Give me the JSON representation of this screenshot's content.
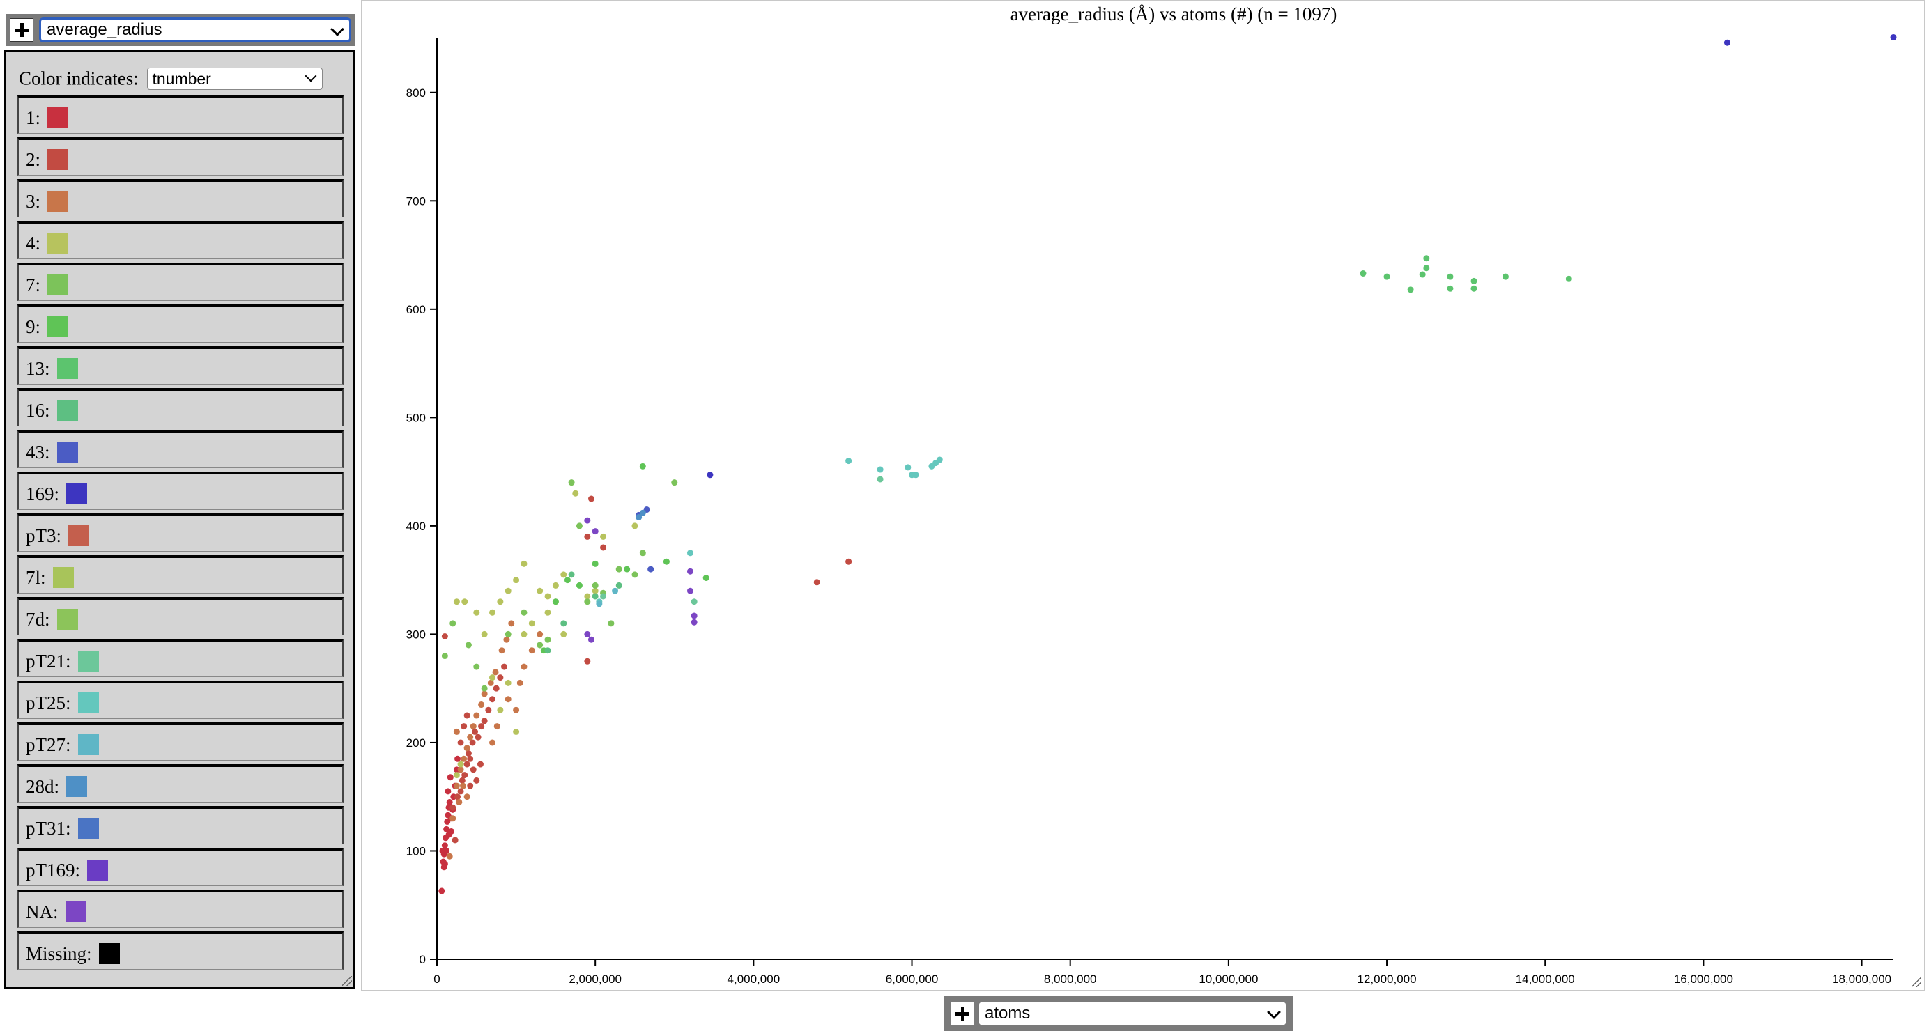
{
  "y_selector": {
    "plus_label": "+",
    "value": "average_radius"
  },
  "x_selector": {
    "plus_label": "+",
    "value": "atoms"
  },
  "legend": {
    "label": "Color indicates:",
    "selected": "tnumber",
    "items": [
      {
        "name": "1:",
        "color": "#c8303f"
      },
      {
        "name": "2:",
        "color": "#c24b42"
      },
      {
        "name": "3:",
        "color": "#c8764a"
      },
      {
        "name": "4:",
        "color": "#b7c35e"
      },
      {
        "name": "7:",
        "color": "#7cc35a"
      },
      {
        "name": "9:",
        "color": "#5fc456"
      },
      {
        "name": "13:",
        "color": "#5cc46e"
      },
      {
        "name": "16:",
        "color": "#5dbf82"
      },
      {
        "name": "43:",
        "color": "#4b5cc4"
      },
      {
        "name": "169:",
        "color": "#3d35c0"
      },
      {
        "name": "pT3:",
        "color": "#c45f4d"
      },
      {
        "name": "7l:",
        "color": "#a8c45a"
      },
      {
        "name": "7d:",
        "color": "#8cc45a"
      },
      {
        "name": "pT21:",
        "color": "#6cc79a"
      },
      {
        "name": "pT25:",
        "color": "#64c7bd"
      },
      {
        "name": "pT27:",
        "color": "#5fb6c6"
      },
      {
        "name": "28d:",
        "color": "#4e90c6"
      },
      {
        "name": "pT31:",
        "color": "#4a74c4"
      },
      {
        "name": "pT169:",
        "color": "#6a3cc4"
      },
      {
        "name": "NA:",
        "color": "#7c46c4"
      },
      {
        "name": "Missing:",
        "color": "#000000"
      }
    ]
  },
  "chart_data": {
    "type": "scatter",
    "title": "average_radius (Å) vs atoms (#) (n = 1097)",
    "xlim": [
      0,
      18400000
    ],
    "ylim": [
      0,
      850
    ],
    "x_ticks": [
      0,
      2000000,
      4000000,
      6000000,
      8000000,
      10000000,
      12000000,
      14000000,
      16000000,
      18000000
    ],
    "x_tick_labels": [
      "0",
      "2,000,000",
      "4,000,000",
      "6,000,000",
      "8,000,000",
      "10,000,000",
      "12,000,000",
      "14,000,000",
      "16,000,000",
      "18,000,000"
    ],
    "y_ticks": [
      0,
      100,
      200,
      300,
      400,
      500,
      600,
      700,
      800
    ],
    "y_tick_labels": [
      "0",
      "100",
      "200",
      "300",
      "400",
      "500",
      "600",
      "700",
      "800"
    ],
    "grid": false,
    "color_by": "tnumber",
    "series": [
      {
        "name": "1:",
        "color": "#c8303f",
        "points": [
          [
            80000,
            90
          ],
          [
            90000,
            97
          ],
          [
            100000,
            105
          ],
          [
            110000,
            112
          ],
          [
            120000,
            120
          ],
          [
            130000,
            127
          ],
          [
            140000,
            133
          ],
          [
            150000,
            140
          ],
          [
            160000,
            145
          ],
          [
            120000,
            100
          ],
          [
            150000,
            115
          ],
          [
            180000,
            130
          ],
          [
            200000,
            138
          ],
          [
            210000,
            150
          ],
          [
            100000,
            88
          ],
          [
            60000,
            63
          ],
          [
            180000,
            118
          ],
          [
            70000,
            100
          ],
          [
            90000,
            85
          ],
          [
            230000,
            160
          ],
          [
            140000,
            155
          ],
          [
            170000,
            168
          ],
          [
            250000,
            175
          ],
          [
            260000,
            185
          ]
        ]
      },
      {
        "name": "2:",
        "color": "#c24b42",
        "points": [
          [
            200000,
            140
          ],
          [
            260000,
            150
          ],
          [
            300000,
            155
          ],
          [
            320000,
            165
          ],
          [
            350000,
            170
          ],
          [
            380000,
            180
          ],
          [
            400000,
            190
          ],
          [
            420000,
            185
          ],
          [
            450000,
            200
          ],
          [
            480000,
            210
          ],
          [
            520000,
            205
          ],
          [
            560000,
            215
          ],
          [
            600000,
            220
          ],
          [
            650000,
            230
          ],
          [
            700000,
            240
          ],
          [
            750000,
            250
          ],
          [
            800000,
            260
          ],
          [
            850000,
            270
          ],
          [
            300000,
            200
          ],
          [
            340000,
            215
          ],
          [
            380000,
            225
          ],
          [
            420000,
            160
          ],
          [
            460000,
            175
          ],
          [
            500000,
            165
          ],
          [
            550000,
            180
          ],
          [
            230000,
            110
          ],
          [
            1900000,
            275
          ],
          [
            1900000,
            390
          ],
          [
            2100000,
            380
          ],
          [
            4800000,
            348
          ],
          [
            5200000,
            367
          ],
          [
            1950000,
            425
          ],
          [
            100000,
            298
          ]
        ]
      },
      {
        "name": "3:",
        "color": "#c8764a",
        "points": [
          [
            250000,
            160
          ],
          [
            300000,
            175
          ],
          [
            340000,
            185
          ],
          [
            380000,
            195
          ],
          [
            420000,
            205
          ],
          [
            460000,
            215
          ],
          [
            500000,
            225
          ],
          [
            560000,
            235
          ],
          [
            600000,
            245
          ],
          [
            680000,
            255
          ],
          [
            740000,
            265
          ],
          [
            820000,
            285
          ],
          [
            880000,
            295
          ],
          [
            940000,
            310
          ],
          [
            1000000,
            230
          ],
          [
            1050000,
            255
          ],
          [
            1100000,
            270
          ],
          [
            1200000,
            285
          ],
          [
            1300000,
            300
          ],
          [
            700000,
            200
          ],
          [
            760000,
            215
          ],
          [
            280000,
            145
          ],
          [
            330000,
            160
          ],
          [
            380000,
            150
          ],
          [
            200000,
            130
          ],
          [
            160000,
            95
          ],
          [
            900000,
            240
          ],
          [
            250000,
            210
          ]
        ]
      },
      {
        "name": "4:",
        "color": "#b7c35e",
        "points": [
          [
            250000,
            330
          ],
          [
            350000,
            330
          ],
          [
            500000,
            320
          ],
          [
            600000,
            300
          ],
          [
            700000,
            320
          ],
          [
            800000,
            330
          ],
          [
            900000,
            340
          ],
          [
            1000000,
            350
          ],
          [
            1100000,
            365
          ],
          [
            1200000,
            310
          ],
          [
            1300000,
            340
          ],
          [
            1400000,
            335
          ],
          [
            1500000,
            345
          ],
          [
            1600000,
            355
          ],
          [
            1750000,
            430
          ],
          [
            1900000,
            335
          ],
          [
            2000000,
            340
          ],
          [
            2100000,
            390
          ],
          [
            2500000,
            400
          ],
          [
            1000000,
            210
          ],
          [
            800000,
            230
          ],
          [
            700000,
            260
          ],
          [
            900000,
            255
          ],
          [
            1400000,
            320
          ],
          [
            1500000,
            330
          ],
          [
            1600000,
            300
          ],
          [
            250000,
            170
          ],
          [
            300000,
            180
          ],
          [
            1100000,
            300
          ]
        ]
      },
      {
        "name": "7:",
        "color": "#7cc35a",
        "points": [
          [
            100000,
            280
          ],
          [
            200000,
            310
          ],
          [
            400000,
            290
          ],
          [
            500000,
            270
          ],
          [
            600000,
            250
          ],
          [
            900000,
            300
          ],
          [
            1100000,
            320
          ],
          [
            1300000,
            290
          ],
          [
            1400000,
            295
          ],
          [
            1700000,
            440
          ],
          [
            1800000,
            400
          ],
          [
            2000000,
            345
          ],
          [
            2200000,
            310
          ],
          [
            2300000,
            360
          ],
          [
            2600000,
            375
          ],
          [
            3000000,
            440
          ],
          [
            2500000,
            355
          ],
          [
            2100000,
            338
          ],
          [
            1900000,
            330
          ]
        ]
      },
      {
        "name": "9:",
        "color": "#5fc456",
        "points": [
          [
            1350000,
            285
          ],
          [
            1500000,
            330
          ],
          [
            1650000,
            350
          ],
          [
            2000000,
            365
          ],
          [
            2400000,
            360
          ],
          [
            2600000,
            455
          ],
          [
            2900000,
            367
          ],
          [
            3400000,
            352
          ],
          [
            1800000,
            345
          ]
        ]
      },
      {
        "name": "13:",
        "color": "#5cc46e",
        "points": [
          [
            11700000,
            633
          ],
          [
            12000000,
            630
          ],
          [
            12300000,
            618
          ],
          [
            12450000,
            632
          ],
          [
            12500000,
            638
          ],
          [
            12500000,
            647
          ],
          [
            12800000,
            630
          ],
          [
            12800000,
            619
          ],
          [
            13100000,
            619
          ],
          [
            13100000,
            626
          ],
          [
            13500000,
            630
          ],
          [
            14300000,
            628
          ]
        ]
      },
      {
        "name": "16:",
        "color": "#5dbf82",
        "points": [
          [
            1600000,
            310
          ],
          [
            2000000,
            335
          ],
          [
            2300000,
            345
          ],
          [
            1400000,
            285
          ],
          [
            1700000,
            355
          ]
        ]
      },
      {
        "name": "43:",
        "color": "#4b5cc4",
        "points": [
          [
            2700000,
            360
          ],
          [
            2550000,
            410
          ],
          [
            2650000,
            415
          ]
        ]
      },
      {
        "name": "169:",
        "color": "#3d35c0",
        "points": [
          [
            16300000,
            846
          ],
          [
            18400000,
            851
          ],
          [
            3450000,
            447
          ]
        ]
      },
      {
        "name": "pT21:",
        "color": "#6cc79a",
        "points": [
          [
            2100000,
            335
          ],
          [
            3250000,
            330
          ],
          [
            5600000,
            443
          ]
        ]
      },
      {
        "name": "pT25:",
        "color": "#64c7bd",
        "points": [
          [
            5200000,
            460
          ],
          [
            5600000,
            452
          ],
          [
            5950000,
            454
          ],
          [
            6000000,
            447
          ],
          [
            6050000,
            447
          ],
          [
            6250000,
            455
          ],
          [
            6300000,
            458
          ],
          [
            6350000,
            461
          ],
          [
            3200000,
            375
          ],
          [
            2050000,
            330
          ]
        ]
      },
      {
        "name": "pT27:",
        "color": "#5fb6c6",
        "points": [
          [
            2050000,
            328
          ],
          [
            2250000,
            340
          ]
        ]
      },
      {
        "name": "28d:",
        "color": "#4e90c6",
        "points": [
          [
            2550000,
            408
          ],
          [
            2600000,
            412
          ]
        ]
      },
      {
        "name": "NA:",
        "color": "#7c46c4",
        "points": [
          [
            1900000,
            300
          ],
          [
            1950000,
            295
          ],
          [
            1900000,
            405
          ],
          [
            3200000,
            358
          ],
          [
            3200000,
            340
          ],
          [
            3250000,
            317
          ],
          [
            3250000,
            311
          ],
          [
            2000000,
            395
          ]
        ]
      }
    ]
  }
}
